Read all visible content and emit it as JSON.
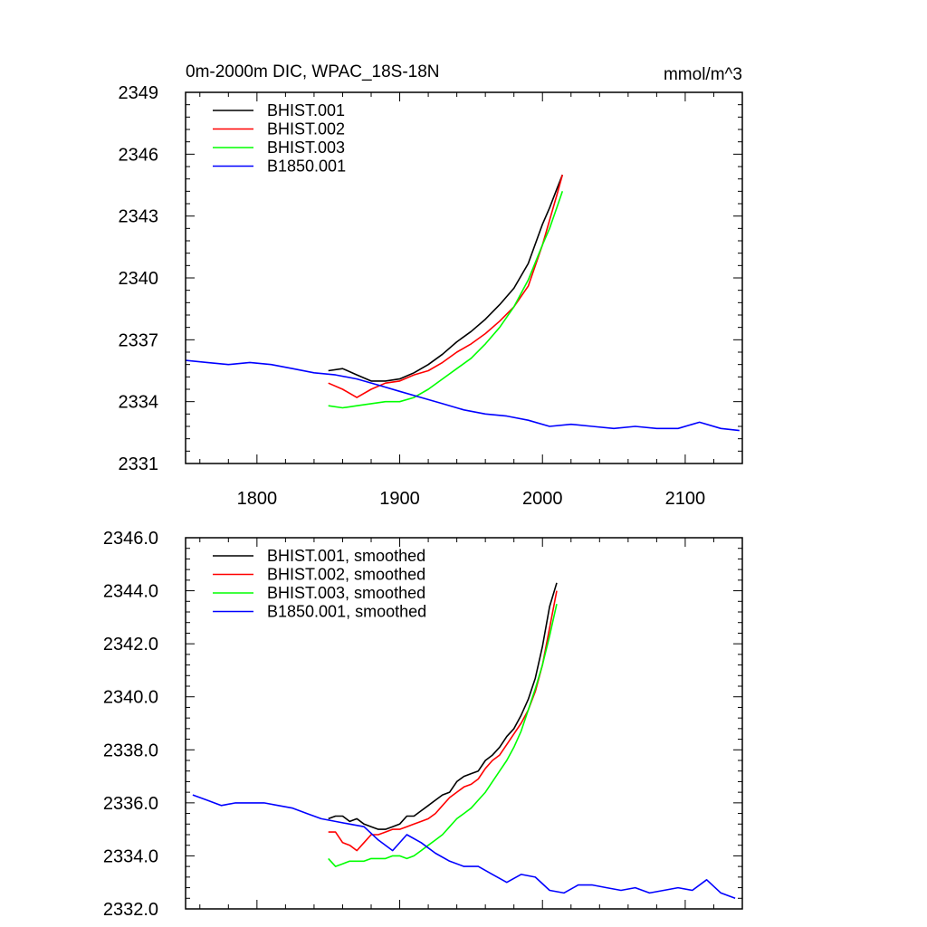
{
  "chart_data": [
    {
      "type": "line",
      "title": "0m-2000m DIC, WPAC_18S-18N",
      "units": "mmol/m^3",
      "xlim": [
        1750,
        2140
      ],
      "ylim": [
        2331,
        2349
      ],
      "x_ticks": [
        1800,
        1900,
        2000,
        2100
      ],
      "x_tick_labels": [
        "1800",
        "1900",
        "2000",
        "2100"
      ],
      "y_ticks": [
        2331,
        2334,
        2337,
        2340,
        2343,
        2346,
        2349
      ],
      "y_tick_labels": [
        "2331",
        "2334",
        "2337",
        "2340",
        "2343",
        "2346",
        "2349"
      ],
      "legend_position": "top-left",
      "series": [
        {
          "name": "BHIST.001",
          "color": "#000000",
          "x": [
            1850,
            1860,
            1870,
            1880,
            1890,
            1900,
            1910,
            1920,
            1930,
            1940,
            1950,
            1960,
            1970,
            1980,
            1990,
            2000,
            2005,
            2010,
            2014
          ],
          "y": [
            2335.5,
            2335.6,
            2335.3,
            2335.0,
            2335.0,
            2335.1,
            2335.4,
            2335.8,
            2336.3,
            2336.9,
            2337.4,
            2338.0,
            2338.7,
            2339.5,
            2340.7,
            2342.6,
            2343.4,
            2344.3,
            2345.0
          ]
        },
        {
          "name": "BHIST.002",
          "color": "#ff0000",
          "x": [
            1850,
            1860,
            1870,
            1880,
            1890,
            1900,
            1910,
            1920,
            1930,
            1940,
            1950,
            1960,
            1970,
            1980,
            1990,
            2000,
            2005,
            2010,
            2014
          ],
          "y": [
            2334.9,
            2334.6,
            2334.2,
            2334.6,
            2334.9,
            2335.0,
            2335.3,
            2335.5,
            2335.9,
            2336.4,
            2336.8,
            2337.3,
            2337.9,
            2338.6,
            2339.6,
            2341.6,
            2342.8,
            2344.0,
            2345.0
          ]
        },
        {
          "name": "BHIST.003",
          "color": "#00ff00",
          "x": [
            1850,
            1860,
            1870,
            1880,
            1890,
            1900,
            1910,
            1920,
            1930,
            1940,
            1950,
            1960,
            1970,
            1980,
            1990,
            2000,
            2005,
            2010,
            2014
          ],
          "y": [
            2333.8,
            2333.7,
            2333.8,
            2333.9,
            2334.0,
            2334.0,
            2334.2,
            2334.6,
            2335.1,
            2335.6,
            2336.1,
            2336.8,
            2337.6,
            2338.6,
            2339.9,
            2341.6,
            2342.4,
            2343.4,
            2344.2
          ]
        },
        {
          "name": "B1850.001",
          "color": "#0000ff",
          "x": [
            1750,
            1765,
            1780,
            1795,
            1810,
            1825,
            1840,
            1855,
            1870,
            1885,
            1900,
            1915,
            1930,
            1945,
            1960,
            1975,
            1990,
            2005,
            2020,
            2035,
            2050,
            2065,
            2080,
            2095,
            2110,
            2125,
            2138
          ],
          "y": [
            2336.0,
            2335.9,
            2335.8,
            2335.9,
            2335.8,
            2335.6,
            2335.4,
            2335.3,
            2335.1,
            2334.8,
            2334.5,
            2334.2,
            2333.9,
            2333.6,
            2333.4,
            2333.3,
            2333.1,
            2332.8,
            2332.9,
            2332.8,
            2332.7,
            2332.8,
            2332.7,
            2332.7,
            2333.0,
            2332.7,
            2332.6
          ]
        }
      ]
    },
    {
      "type": "line",
      "title": "",
      "xlim": [
        1750,
        2140
      ],
      "ylim": [
        2332.0,
        2346.0
      ],
      "x_ticks": [
        1800,
        1900,
        2000,
        2100
      ],
      "x_tick_labels": [],
      "y_ticks": [
        2332.0,
        2334.0,
        2336.0,
        2338.0,
        2340.0,
        2342.0,
        2344.0,
        2346.0
      ],
      "y_tick_labels": [
        "2332.0",
        "2334.0",
        "2336.0",
        "2338.0",
        "2340.0",
        "2342.0",
        "2344.0",
        "2346.0"
      ],
      "legend_position": "top-left",
      "series": [
        {
          "name": "BHIST.001, smoothed",
          "color": "#000000",
          "x": [
            1850,
            1855,
            1860,
            1865,
            1870,
            1875,
            1880,
            1885,
            1890,
            1895,
            1900,
            1905,
            1910,
            1915,
            1920,
            1925,
            1930,
            1935,
            1940,
            1945,
            1950,
            1955,
            1960,
            1965,
            1970,
            1975,
            1980,
            1985,
            1990,
            1995,
            2000,
            2005,
            2010
          ],
          "y": [
            2335.4,
            2335.5,
            2335.5,
            2335.3,
            2335.4,
            2335.2,
            2335.1,
            2335.0,
            2335.0,
            2335.1,
            2335.2,
            2335.5,
            2335.5,
            2335.7,
            2335.9,
            2336.1,
            2336.3,
            2336.4,
            2336.8,
            2337.0,
            2337.1,
            2337.2,
            2337.6,
            2337.8,
            2338.1,
            2338.5,
            2338.8,
            2339.3,
            2339.9,
            2340.7,
            2341.9,
            2343.4,
            2344.3
          ]
        },
        {
          "name": "BHIST.002, smoothed",
          "color": "#ff0000",
          "x": [
            1850,
            1855,
            1860,
            1865,
            1870,
            1875,
            1880,
            1885,
            1890,
            1895,
            1900,
            1905,
            1910,
            1915,
            1920,
            1925,
            1930,
            1935,
            1940,
            1945,
            1950,
            1955,
            1960,
            1965,
            1970,
            1975,
            1980,
            1985,
            1990,
            1995,
            2000,
            2005,
            2010
          ],
          "y": [
            2334.9,
            2334.9,
            2334.5,
            2334.4,
            2334.2,
            2334.5,
            2334.8,
            2334.8,
            2334.9,
            2335.0,
            2335.0,
            2335.1,
            2335.2,
            2335.3,
            2335.4,
            2335.6,
            2335.9,
            2336.2,
            2336.4,
            2336.6,
            2336.7,
            2336.9,
            2337.3,
            2337.6,
            2337.8,
            2338.2,
            2338.6,
            2339.0,
            2339.5,
            2340.2,
            2341.2,
            2342.6,
            2344.0
          ]
        },
        {
          "name": "BHIST.003, smoothed",
          "color": "#00ff00",
          "x": [
            1850,
            1855,
            1860,
            1865,
            1870,
            1875,
            1880,
            1885,
            1890,
            1895,
            1900,
            1905,
            1910,
            1915,
            1920,
            1925,
            1930,
            1935,
            1940,
            1945,
            1950,
            1955,
            1960,
            1965,
            1970,
            1975,
            1980,
            1985,
            1990,
            1995,
            2000,
            2005,
            2010
          ],
          "y": [
            2333.9,
            2333.6,
            2333.7,
            2333.8,
            2333.8,
            2333.8,
            2333.9,
            2333.9,
            2333.9,
            2334.0,
            2334.0,
            2333.9,
            2334.0,
            2334.2,
            2334.4,
            2334.6,
            2334.8,
            2335.1,
            2335.4,
            2335.6,
            2335.8,
            2336.1,
            2336.4,
            2336.8,
            2337.2,
            2337.6,
            2338.1,
            2338.7,
            2339.5,
            2340.3,
            2341.2,
            2342.3,
            2343.5
          ]
        },
        {
          "name": "B1850.001, smoothed",
          "color": "#0000ff",
          "x": [
            1755,
            1765,
            1775,
            1785,
            1795,
            1805,
            1815,
            1825,
            1835,
            1845,
            1855,
            1865,
            1875,
            1885,
            1895,
            1905,
            1915,
            1925,
            1935,
            1945,
            1955,
            1965,
            1975,
            1985,
            1995,
            2005,
            2015,
            2025,
            2035,
            2045,
            2055,
            2065,
            2075,
            2085,
            2095,
            2105,
            2115,
            2125,
            2135
          ],
          "y": [
            2336.3,
            2336.1,
            2335.9,
            2336.0,
            2336.0,
            2336.0,
            2335.9,
            2335.8,
            2335.6,
            2335.4,
            2335.3,
            2335.2,
            2335.1,
            2334.6,
            2334.2,
            2334.8,
            2334.5,
            2334.1,
            2333.8,
            2333.6,
            2333.6,
            2333.3,
            2333.0,
            2333.3,
            2333.2,
            2332.7,
            2332.6,
            2332.9,
            2332.9,
            2332.8,
            2332.7,
            2332.8,
            2332.6,
            2332.7,
            2332.8,
            2332.7,
            2333.1,
            2332.6,
            2332.4
          ]
        }
      ]
    }
  ]
}
